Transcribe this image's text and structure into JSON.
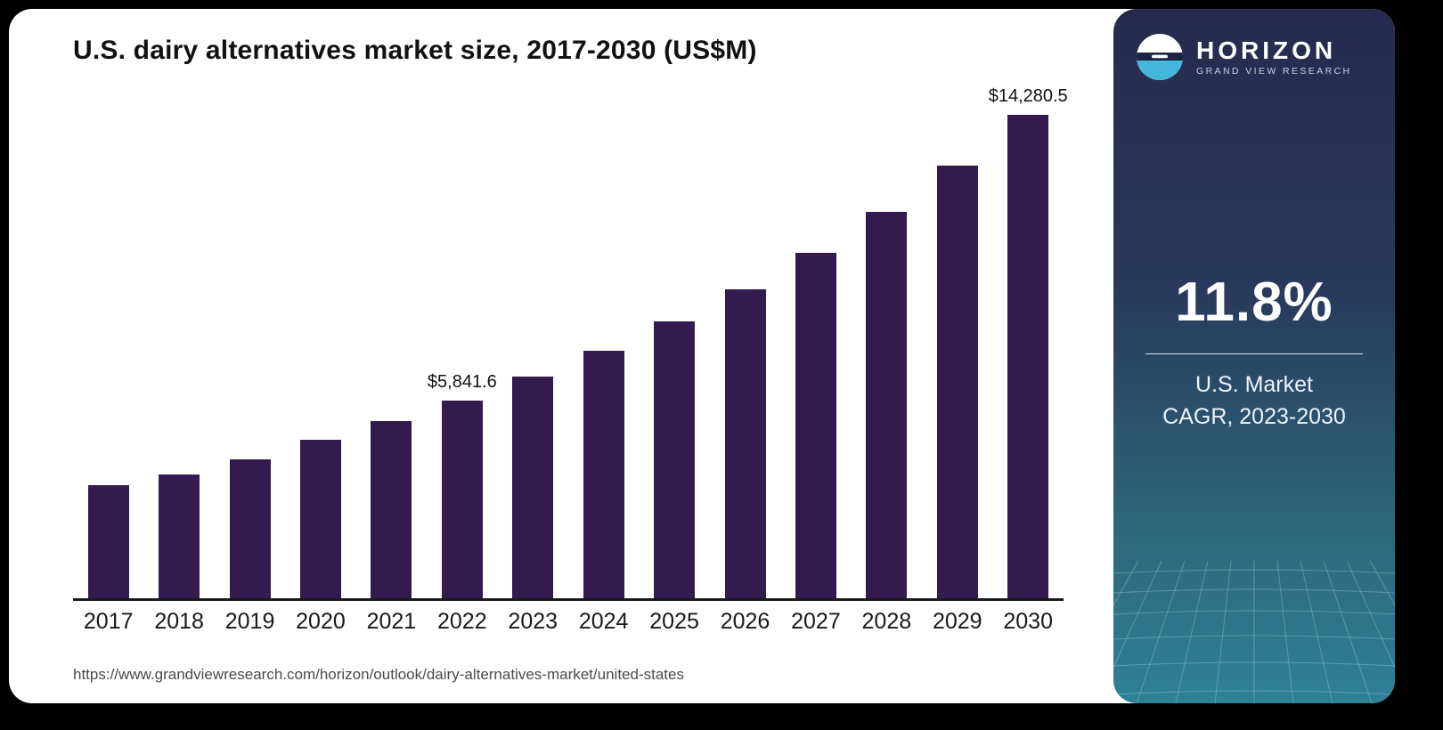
{
  "page": {
    "title": "U.S. dairy alternatives market size, 2017-2030 (US$M)",
    "source_url": "https://www.grandviewresearch.com/horizon/outlook/dairy-alternatives-market/united-states"
  },
  "chart_data": {
    "type": "bar",
    "title": "U.S. dairy alternatives market size, 2017-2030 (US$M)",
    "categories": [
      "2017",
      "2018",
      "2019",
      "2020",
      "2021",
      "2022",
      "2023",
      "2024",
      "2025",
      "2026",
      "2027",
      "2028",
      "2029",
      "2030"
    ],
    "values": [
      3350,
      3660,
      4110,
      4690,
      5240,
      5841.6,
      6540.1,
      7311.8,
      8174.6,
      9139.2,
      10217.6,
      11423.3,
      12771.2,
      14280.5
    ],
    "data_labels": {
      "2022": "$5,841.6",
      "2030": "$14,280.5"
    },
    "xlabel": "",
    "ylabel": "",
    "ylim": [
      0,
      15000
    ],
    "grid": false,
    "legend_position": "none",
    "bar_color": "#341b4f"
  },
  "sidebar": {
    "brand_name": "HORIZON",
    "brand_subtitle": "GRAND VIEW RESEARCH",
    "stat_value": "11.8%",
    "stat_caption_line1": "U.S. Market",
    "stat_caption_line2": "CAGR, 2023-2030",
    "colors": {
      "gradient_top": "#272a4d",
      "gradient_bottom": "#2f8198",
      "logo_accent": "#45b6dc"
    }
  }
}
